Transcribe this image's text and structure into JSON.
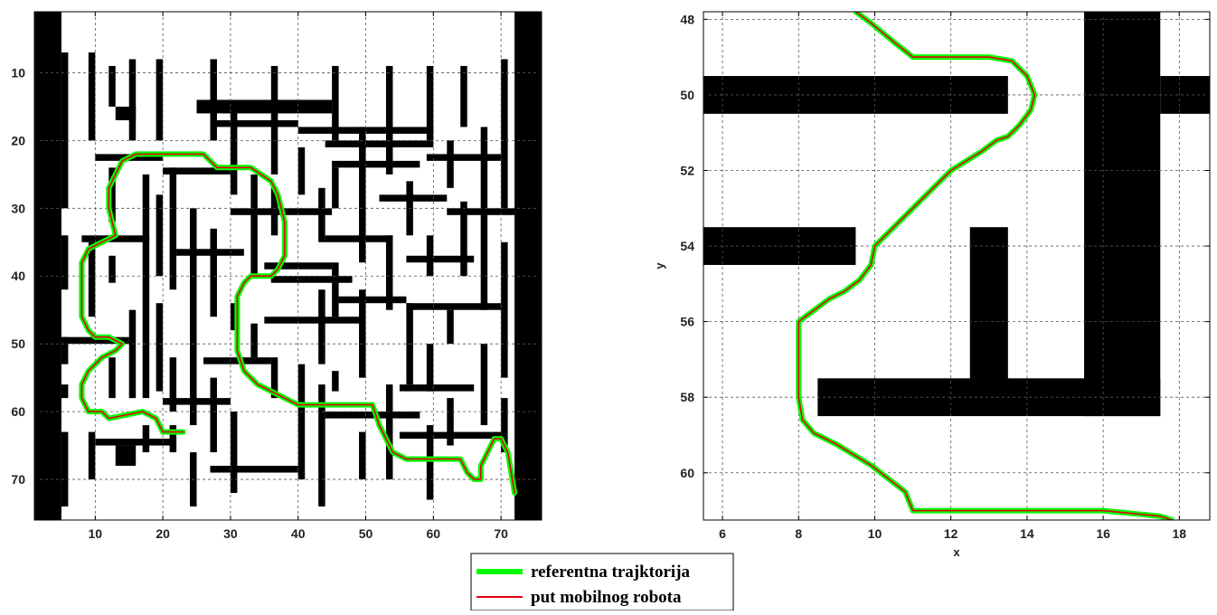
{
  "chart_data": [
    {
      "type": "line",
      "name": "maze-overview",
      "xlabel": "",
      "ylabel": "",
      "xlim": [
        1,
        76
      ],
      "ylim": [
        76,
        1
      ],
      "y_reversed": true,
      "grid": true,
      "xticks": [
        10,
        20,
        30,
        40,
        50,
        60,
        70
      ],
      "yticks": [
        10,
        20,
        30,
        40,
        50,
        60,
        70
      ],
      "obstacles": [
        [
          1,
          5,
          76,
          1
        ],
        [
          1,
          5,
          1,
          76
        ],
        [
          1,
          5,
          76,
          74
        ],
        [
          72,
          76,
          1,
          76
        ],
        [
          5,
          6,
          7,
          30
        ],
        [
          5,
          6,
          34,
          42
        ],
        [
          5,
          6,
          49,
          53
        ],
        [
          5,
          6,
          56,
          58
        ],
        [
          5,
          6,
          63,
          74
        ],
        [
          9,
          10,
          7,
          20
        ],
        [
          9,
          10,
          35,
          46
        ],
        [
          9,
          10,
          63,
          70
        ],
        [
          12,
          13,
          9,
          15
        ],
        [
          12,
          13,
          24,
          32
        ],
        [
          12,
          13,
          37,
          41
        ],
        [
          12,
          13,
          52,
          58
        ],
        [
          13,
          16,
          15,
          17
        ],
        [
          13,
          16,
          65,
          68
        ],
        [
          15,
          16,
          8,
          20
        ],
        [
          15,
          16,
          45,
          58
        ],
        [
          17,
          18,
          25,
          58
        ],
        [
          17,
          18,
          62,
          66
        ],
        [
          19,
          20,
          8,
          20
        ],
        [
          19,
          20,
          28,
          40
        ],
        [
          19,
          20,
          44,
          57
        ],
        [
          21,
          22,
          24,
          42
        ],
        [
          21,
          22,
          52,
          60
        ],
        [
          21,
          22,
          62,
          66
        ],
        [
          24,
          25,
          30,
          62
        ],
        [
          24,
          25,
          66,
          74
        ],
        [
          27,
          28,
          8,
          20
        ],
        [
          27,
          28,
          33,
          46
        ],
        [
          27,
          28,
          55,
          66
        ],
        [
          30,
          31,
          15,
          28
        ],
        [
          30,
          31,
          44,
          48
        ],
        [
          30,
          31,
          60,
          72
        ],
        [
          33,
          34,
          25,
          40
        ],
        [
          33,
          34,
          47,
          52
        ],
        [
          36,
          37,
          9,
          25
        ],
        [
          36,
          37,
          27,
          34
        ],
        [
          36,
          37,
          52,
          58
        ],
        [
          40,
          41,
          21,
          28
        ],
        [
          40,
          41,
          53,
          70
        ],
        [
          43,
          44,
          27,
          35
        ],
        [
          43,
          44,
          42,
          53
        ],
        [
          43,
          44,
          56,
          74
        ],
        [
          45,
          46,
          9,
          20
        ],
        [
          45,
          46,
          24,
          30
        ],
        [
          45,
          46,
          38,
          46
        ],
        [
          45,
          46,
          54,
          57
        ],
        [
          49,
          50,
          18,
          38
        ],
        [
          49,
          50,
          42,
          55
        ],
        [
          49,
          50,
          63,
          70
        ],
        [
          53,
          54,
          9,
          25
        ],
        [
          53,
          54,
          34,
          45
        ],
        [
          53,
          54,
          56,
          70
        ],
        [
          56,
          57,
          26,
          34
        ],
        [
          56,
          57,
          44,
          56
        ],
        [
          59,
          60,
          9,
          20
        ],
        [
          59,
          60,
          34,
          40
        ],
        [
          59,
          60,
          50,
          57
        ],
        [
          59,
          60,
          62,
          73
        ],
        [
          62,
          63,
          20,
          27
        ],
        [
          62,
          63,
          45,
          50
        ],
        [
          62,
          63,
          58,
          65
        ],
        [
          64,
          65,
          9,
          18
        ],
        [
          64,
          65,
          29,
          40
        ],
        [
          67,
          68,
          18,
          45
        ],
        [
          67,
          68,
          50,
          62
        ],
        [
          70,
          71,
          8,
          30
        ],
        [
          70,
          71,
          35,
          55
        ],
        [
          70,
          71,
          58,
          66
        ],
        [
          25,
          45,
          14,
          16
        ],
        [
          27,
          40,
          17,
          18
        ],
        [
          40,
          60,
          18,
          19
        ],
        [
          44,
          60,
          20,
          21
        ],
        [
          52,
          62,
          28,
          29
        ],
        [
          30,
          45,
          30,
          31
        ],
        [
          44,
          54,
          34,
          35
        ],
        [
          56,
          66,
          37,
          38
        ],
        [
          36,
          48,
          40,
          41
        ],
        [
          35,
          50,
          46,
          47
        ],
        [
          46,
          56,
          43,
          44
        ],
        [
          56,
          70,
          44,
          45
        ],
        [
          5,
          15,
          49,
          50
        ],
        [
          26,
          36,
          52,
          53
        ],
        [
          55,
          66,
          56,
          57
        ],
        [
          20,
          30,
          58,
          59
        ],
        [
          44,
          58,
          60,
          61
        ],
        [
          10,
          22,
          64,
          65
        ],
        [
          27,
          40,
          68,
          69
        ],
        [
          55,
          70,
          63,
          64
        ],
        [
          22,
          32,
          36,
          37
        ],
        [
          35,
          45,
          38,
          39
        ],
        [
          8,
          18,
          34,
          35
        ],
        [
          20,
          30,
          24,
          25
        ],
        [
          45,
          58,
          23,
          24
        ],
        [
          59,
          70,
          22,
          23
        ],
        [
          10,
          20,
          22,
          23
        ],
        [
          62,
          72,
          30,
          31
        ]
      ],
      "series": [
        {
          "name": "referentna trajktorija",
          "color": "#00ff00",
          "x": [
            23,
            20,
            19,
            17,
            12,
            11,
            9,
            8,
            8,
            9,
            11,
            13,
            14,
            12,
            10,
            9,
            8,
            8,
            9,
            11,
            13,
            12,
            12,
            13,
            14,
            16,
            17,
            26,
            28,
            33,
            36,
            37,
            38,
            38,
            37,
            36,
            33,
            32,
            31,
            31,
            31,
            32,
            34,
            38,
            40,
            49,
            51,
            52,
            53,
            54,
            56,
            60,
            64,
            65,
            66,
            67,
            67,
            68,
            69,
            70,
            71,
            72
          ],
          "y": [
            63,
            63,
            61,
            60,
            61,
            60,
            60,
            58,
            56,
            54,
            52,
            51,
            50,
            49,
            49,
            48,
            46,
            38,
            36,
            35,
            34,
            30,
            27,
            25,
            23,
            22,
            22,
            22,
            24,
            24,
            26,
            28,
            32,
            37,
            39,
            40,
            40,
            41,
            43,
            47,
            51,
            54,
            56,
            58,
            59,
            59,
            59,
            62,
            64,
            66,
            67,
            67,
            67,
            69,
            70,
            70,
            68,
            66,
            64,
            64,
            66,
            72
          ]
        },
        {
          "name": "put mobilnog robota",
          "color": "#e8000b",
          "x": [
            23,
            20,
            19,
            17,
            12,
            11,
            9,
            8,
            8,
            9,
            11,
            13,
            14,
            12,
            10,
            9,
            8,
            8,
            9,
            11,
            13,
            12,
            12,
            13,
            14,
            16,
            17,
            26,
            28,
            33,
            36,
            37,
            38,
            38,
            37,
            36,
            33,
            32,
            31,
            31,
            31,
            32,
            34,
            38,
            40,
            49,
            51,
            52,
            53,
            54,
            56,
            60,
            64,
            65,
            66,
            67,
            67,
            68,
            69,
            70,
            71,
            72
          ],
          "y": [
            63,
            63,
            61,
            60,
            61,
            60,
            60,
            58,
            56,
            54,
            52,
            51,
            50,
            49,
            49,
            48,
            46,
            38,
            36,
            35,
            34,
            30,
            27,
            25,
            23,
            22,
            22,
            22,
            24,
            24,
            26,
            28,
            32,
            37,
            39,
            40,
            40,
            41,
            43,
            47,
            51,
            54,
            56,
            58,
            59,
            59,
            59,
            62,
            64,
            66,
            67,
            67,
            67,
            69,
            70,
            70,
            68,
            66,
            64,
            64,
            66,
            72
          ]
        }
      ]
    },
    {
      "type": "line",
      "name": "maze-zoom",
      "xlabel": "x",
      "ylabel": "y",
      "xlim": [
        5.5,
        18.8
      ],
      "ylim": [
        61.25,
        47.8
      ],
      "y_reversed": true,
      "grid": true,
      "xticks": [
        6,
        8,
        10,
        12,
        14,
        16,
        18
      ],
      "yticks": [
        48,
        50,
        52,
        54,
        56,
        58,
        60
      ],
      "obstacles": [
        [
          5.5,
          13.5,
          49.5,
          50.5
        ],
        [
          5.5,
          9.5,
          53.5,
          54.5
        ],
        [
          12.5,
          13.5,
          53.5,
          58
        ],
        [
          8.5,
          17.5,
          57.5,
          58.5
        ],
        [
          15.5,
          17.5,
          47.8,
          58.5
        ],
        [
          17.5,
          18.8,
          49.5,
          50.5
        ]
      ],
      "series": [
        {
          "name": "referentna trajktorija",
          "color": "#00ff00",
          "x": [
            9.5,
            9.9,
            10.5,
            11,
            13,
            13.6,
            14,
            14.2,
            14.1,
            13.8,
            13.5,
            13.2,
            12.8,
            12,
            11.2,
            10.5,
            10,
            9.9,
            9.6,
            9.2,
            8.8,
            8.4,
            8,
            8,
            8,
            8.1,
            8.4,
            9,
            9.9,
            10.8,
            11,
            12,
            14,
            16,
            17,
            17.5,
            17.8
          ],
          "y": [
            47.8,
            48.1,
            48.6,
            49,
            49,
            49.1,
            49.5,
            50,
            50.4,
            50.8,
            51.1,
            51.2,
            51.5,
            52,
            52.8,
            53.5,
            54,
            54.5,
            54.9,
            55.2,
            55.4,
            55.7,
            56,
            57,
            58,
            58.6,
            58.95,
            59.25,
            59.8,
            60.5,
            61,
            61,
            61,
            61,
            61.1,
            61.15,
            61.25
          ]
        },
        {
          "name": "put mobilnog robota",
          "color": "#e8000b",
          "x": [
            9.5,
            9.9,
            10.5,
            11,
            13,
            13.6,
            14,
            14.2,
            14.1,
            13.8,
            13.5,
            13.2,
            12.8,
            12,
            11.2,
            10.5,
            10,
            9.9,
            9.6,
            9.2,
            8.8,
            8.4,
            8,
            8,
            8,
            8.1,
            8.4,
            9,
            9.9,
            10.8,
            11,
            12,
            14,
            16,
            17,
            17.5,
            17.8
          ],
          "y": [
            47.8,
            48.1,
            48.6,
            49,
            49,
            49.1,
            49.5,
            50,
            50.4,
            50.8,
            51.1,
            51.2,
            51.5,
            52,
            52.8,
            53.5,
            54,
            54.5,
            54.9,
            55.2,
            55.4,
            55.7,
            56,
            57,
            58,
            58.6,
            58.95,
            59.25,
            59.8,
            60.5,
            61,
            61,
            61,
            61,
            61.1,
            61.15,
            61.25
          ]
        }
      ]
    }
  ],
  "legend": {
    "placement": "bottom-center",
    "items": [
      {
        "label": "referentna trajktorija",
        "color": "#00ff00"
      },
      {
        "label": "put mobilnog robota",
        "color": "#e8000b"
      }
    ]
  }
}
